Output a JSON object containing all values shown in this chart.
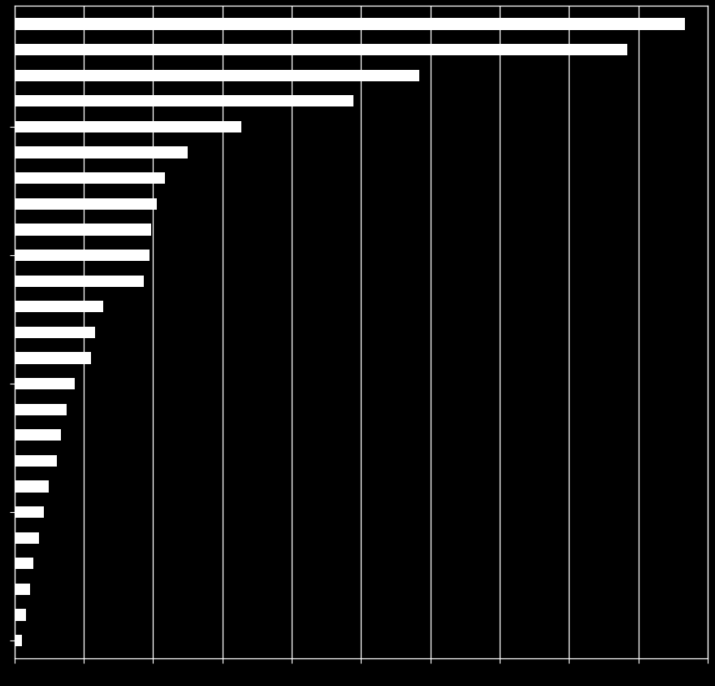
{
  "values": [
    870,
    795,
    525,
    440,
    295,
    225,
    195,
    185,
    178,
    175,
    168,
    115,
    105,
    100,
    78,
    68,
    60,
    55,
    45,
    38,
    32,
    25,
    20,
    15,
    10
  ],
  "bar_color": "#ffffff",
  "background_color": "#000000",
  "grid_color": "#ffffff",
  "xlim_max": 900,
  "n_xticks": 11,
  "bar_height": 0.45,
  "figsize": [
    8.8,
    8.45
  ],
  "dpi": 100
}
